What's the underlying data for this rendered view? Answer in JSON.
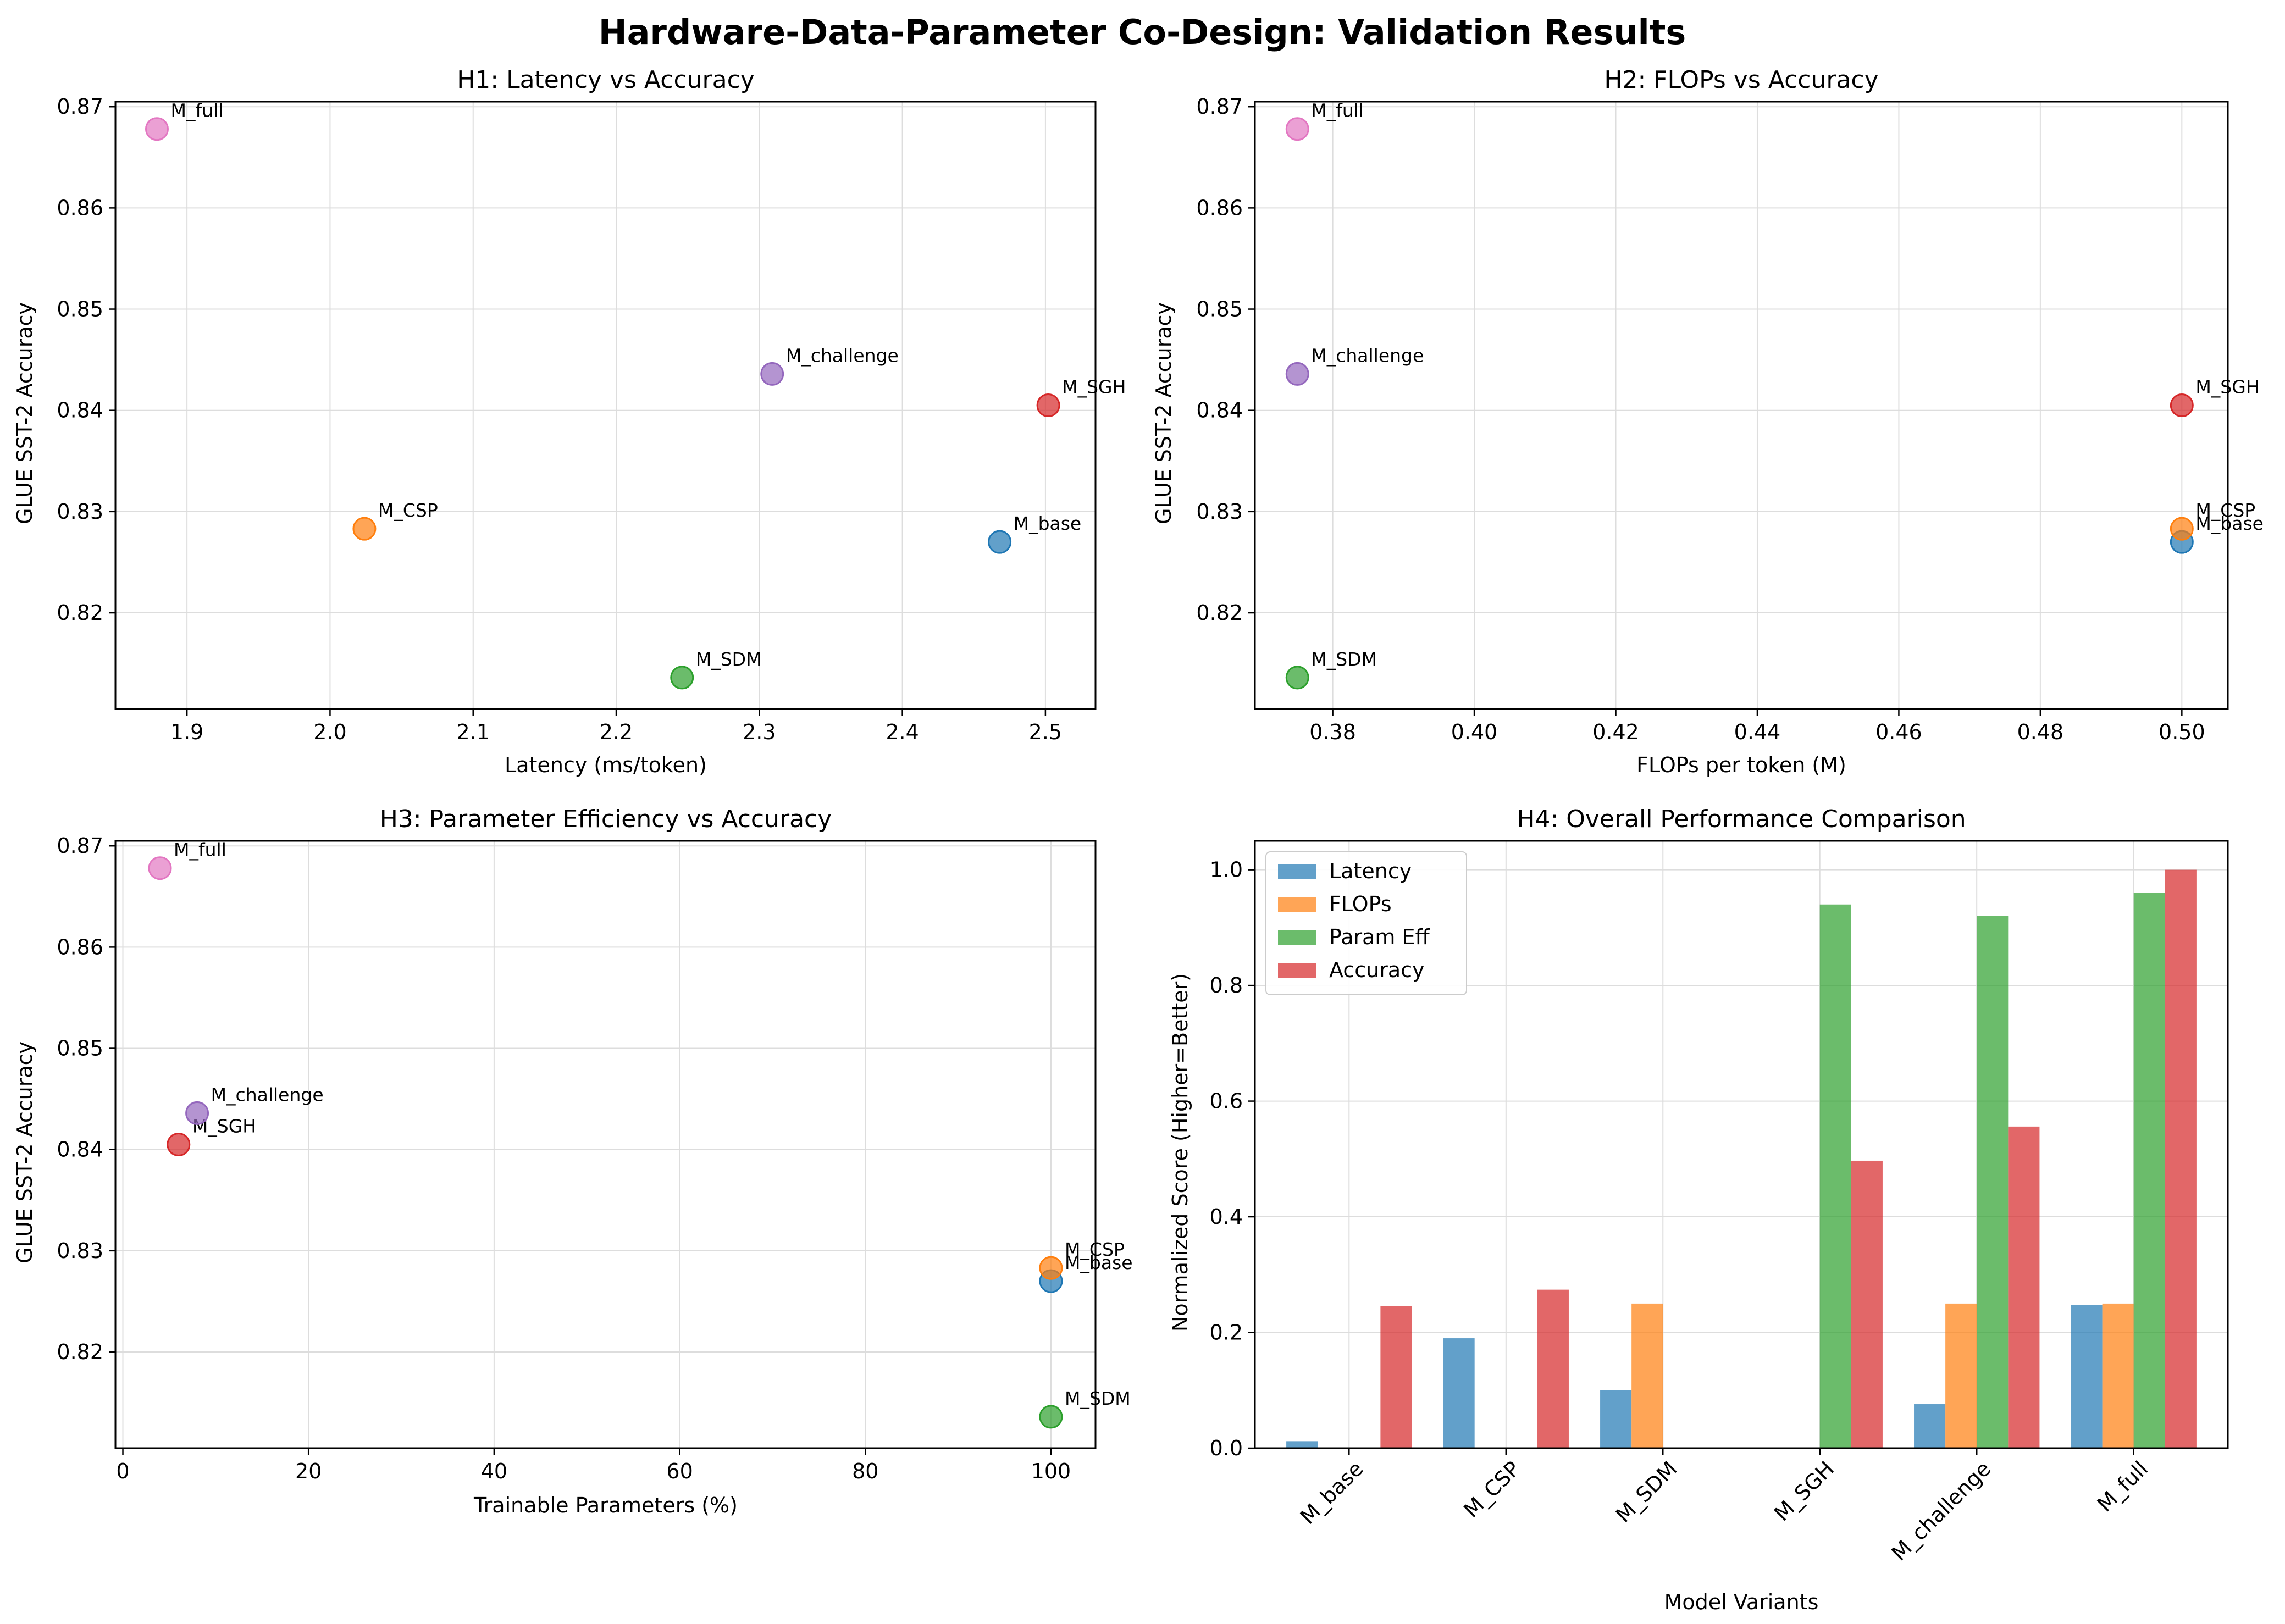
{
  "figure": {
    "title": "Hardware-Data-Parameter Co-Design: Validation Results"
  },
  "colors": {
    "M_base": "#1f77b4",
    "M_CSP": "#ff7f0e",
    "M_SDM": "#2ca02c",
    "M_SGH": "#d62728",
    "M_challenge": "#9467bd",
    "M_full": "#e377c2",
    "grid": "#dddddd"
  },
  "chart_data": [
    {
      "id": "h1",
      "type": "scatter",
      "title": "H1: Latency vs Accuracy",
      "xlabel": "Latency (ms/token)",
      "ylabel": "GLUE SST-2 Accuracy",
      "xlim": [
        1.85,
        2.535
      ],
      "ylim": [
        0.8105,
        0.8705
      ],
      "xticks": [
        1.9,
        2.0,
        2.1,
        2.2,
        2.3,
        2.4,
        2.5
      ],
      "xtick_labels": [
        "1.9",
        "2.0",
        "2.1",
        "2.2",
        "2.3",
        "2.4",
        "2.5"
      ],
      "yticks": [
        0.82,
        0.83,
        0.84,
        0.85,
        0.86,
        0.87
      ],
      "ytick_labels": [
        "0.82",
        "0.83",
        "0.84",
        "0.85",
        "0.86",
        "0.87"
      ],
      "grid": true,
      "points": [
        {
          "label": "M_base",
          "x": 2.468,
          "y": 0.827
        },
        {
          "label": "M_CSP",
          "x": 2.024,
          "y": 0.8283
        },
        {
          "label": "M_SDM",
          "x": 2.246,
          "y": 0.8136
        },
        {
          "label": "M_SGH",
          "x": 2.502,
          "y": 0.8405
        },
        {
          "label": "M_challenge",
          "x": 2.309,
          "y": 0.8436
        },
        {
          "label": "M_full",
          "x": 1.879,
          "y": 0.8678
        }
      ]
    },
    {
      "id": "h2",
      "type": "scatter",
      "title": "H2: FLOPs vs Accuracy",
      "xlabel": "FLOPs per token (M)",
      "ylabel": "GLUE SST-2 Accuracy",
      "xlim": [
        0.369,
        0.5065
      ],
      "ylim": [
        0.8105,
        0.8705
      ],
      "xticks": [
        0.38,
        0.4,
        0.42,
        0.44,
        0.46,
        0.48,
        0.5
      ],
      "xtick_labels": [
        "0.38",
        "0.40",
        "0.42",
        "0.44",
        "0.46",
        "0.48",
        "0.50"
      ],
      "yticks": [
        0.82,
        0.83,
        0.84,
        0.85,
        0.86,
        0.87
      ],
      "ytick_labels": [
        "0.82",
        "0.83",
        "0.84",
        "0.85",
        "0.86",
        "0.87"
      ],
      "grid": true,
      "points": [
        {
          "label": "M_base",
          "x": 0.5,
          "y": 0.827
        },
        {
          "label": "M_CSP",
          "x": 0.5,
          "y": 0.8283
        },
        {
          "label": "M_SDM",
          "x": 0.375,
          "y": 0.8136
        },
        {
          "label": "M_SGH",
          "x": 0.5,
          "y": 0.8405
        },
        {
          "label": "M_challenge",
          "x": 0.375,
          "y": 0.8436
        },
        {
          "label": "M_full",
          "x": 0.375,
          "y": 0.8678
        }
      ]
    },
    {
      "id": "h3",
      "type": "scatter",
      "title": "H3: Parameter Efficiency vs Accuracy",
      "xlabel": "Trainable Parameters (%)",
      "ylabel": "GLUE SST-2 Accuracy",
      "xlim": [
        -0.8,
        104.8
      ],
      "ylim": [
        0.8105,
        0.8705
      ],
      "xticks": [
        0,
        20,
        40,
        60,
        80,
        100
      ],
      "xtick_labels": [
        "0",
        "20",
        "40",
        "60",
        "80",
        "100"
      ],
      "yticks": [
        0.82,
        0.83,
        0.84,
        0.85,
        0.86,
        0.87
      ],
      "ytick_labels": [
        "0.82",
        "0.83",
        "0.84",
        "0.85",
        "0.86",
        "0.87"
      ],
      "grid": true,
      "points": [
        {
          "label": "M_base",
          "x": 100,
          "y": 0.827
        },
        {
          "label": "M_CSP",
          "x": 100,
          "y": 0.8283
        },
        {
          "label": "M_SDM",
          "x": 100,
          "y": 0.8136
        },
        {
          "label": "M_SGH",
          "x": 6,
          "y": 0.8405
        },
        {
          "label": "M_challenge",
          "x": 8,
          "y": 0.8436
        },
        {
          "label": "M_full",
          "x": 4,
          "y": 0.8678
        }
      ]
    },
    {
      "id": "h4",
      "type": "bar",
      "title": "H4: Overall Performance Comparison",
      "xlabel": "Model Variants",
      "ylabel": "Normalized Score (Higher=Better)",
      "ylim": [
        0,
        1.05
      ],
      "yticks": [
        0.0,
        0.2,
        0.4,
        0.6,
        0.8,
        1.0
      ],
      "ytick_labels": [
        "0.0",
        "0.2",
        "0.4",
        "0.6",
        "0.8",
        "1.0"
      ],
      "categories": [
        "M_base",
        "M_CSP",
        "M_SDM",
        "M_SGH",
        "M_challenge",
        "M_full"
      ],
      "legend_position": "top-left",
      "grid": true,
      "series": [
        {
          "name": "Latency",
          "color": "#1f77b4",
          "values": [
            0.012,
            0.19,
            0.1,
            0.0,
            0.076,
            0.248
          ]
        },
        {
          "name": "FLOPs",
          "color": "#ff7f0e",
          "values": [
            0.0,
            0.0,
            0.25,
            0.0,
            0.25,
            0.25
          ]
        },
        {
          "name": "Param Eff",
          "color": "#2ca02c",
          "values": [
            0.0,
            0.0,
            0.0,
            0.94,
            0.92,
            0.96
          ]
        },
        {
          "name": "Accuracy",
          "color": "#d62728",
          "values": [
            0.246,
            0.274,
            0.0,
            0.497,
            0.556,
            1.0
          ]
        }
      ]
    }
  ]
}
